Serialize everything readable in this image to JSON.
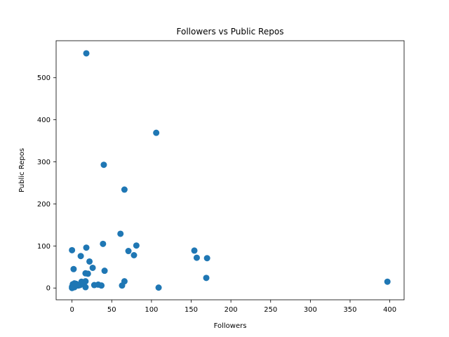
{
  "chart_data": {
    "type": "scatter",
    "title": "Followers vs Public Repos",
    "xlabel": "Followers",
    "ylabel": "Public Repos",
    "xlim": [
      -20,
      418
    ],
    "ylim": [
      -28,
      588
    ],
    "xticks": [
      0,
      50,
      100,
      150,
      200,
      250,
      300,
      350,
      400
    ],
    "yticks": [
      0,
      100,
      200,
      300,
      400,
      500
    ],
    "grid": false,
    "color": "#1f77b4",
    "points": [
      [
        18,
        558
      ],
      [
        106,
        369
      ],
      [
        40,
        293
      ],
      [
        66,
        234
      ],
      [
        61,
        129
      ],
      [
        81,
        101
      ],
      [
        39,
        105
      ],
      [
        18,
        96
      ],
      [
        0,
        90
      ],
      [
        71,
        88
      ],
      [
        154,
        89
      ],
      [
        78,
        78
      ],
      [
        11,
        76
      ],
      [
        157,
        72
      ],
      [
        170,
        71
      ],
      [
        22,
        63
      ],
      [
        26,
        48
      ],
      [
        2,
        45
      ],
      [
        41,
        41
      ],
      [
        17,
        35
      ],
      [
        20,
        34
      ],
      [
        169,
        24
      ],
      [
        397,
        15
      ],
      [
        66,
        16
      ],
      [
        17,
        16
      ],
      [
        12,
        15
      ],
      [
        28,
        7
      ],
      [
        33,
        8
      ],
      [
        37,
        6
      ],
      [
        63,
        6
      ],
      [
        109,
        1
      ],
      [
        17,
        2
      ],
      [
        8,
        6
      ],
      [
        5,
        10
      ],
      [
        3,
        11
      ],
      [
        1,
        9
      ],
      [
        2,
        5
      ],
      [
        0,
        3
      ],
      [
        1,
        1
      ],
      [
        3,
        2
      ],
      [
        6,
        8
      ],
      [
        4,
        4
      ],
      [
        10,
        7
      ],
      [
        14,
        10
      ],
      [
        0,
        0
      ]
    ]
  }
}
